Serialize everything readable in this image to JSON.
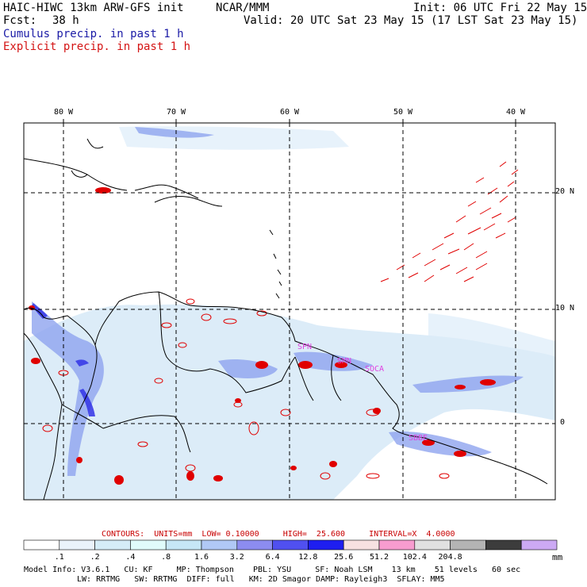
{
  "header": {
    "model": "HAIC-HIWC 13km ARW-GFS init",
    "org": "NCAR/MMM",
    "init": "Init: 06 UTC Fri 22 May 15",
    "fcst_label": "Fcst:",
    "fcst_value": "38 h",
    "valid": "Valid: 20 UTC Sat 23 May 15 (17 LST Sat 23 May 15)",
    "cumulus": "Cumulus precip. in past 1 h",
    "explicit": "Explicit precip. in past 1 h"
  },
  "map": {
    "lon_labels": [
      "80 W",
      "70 W",
      "60 W",
      "50 W",
      "40 W"
    ],
    "lat_labels": [
      "20 N",
      "10 N",
      "0"
    ],
    "stations": [
      "SPN",
      "SMN",
      "SOCA",
      "SBBE"
    ],
    "colors": {
      "coast": "#000000",
      "grid": "#000000",
      "explicit_contour": "#e00000",
      "label_magenta": "#e040e0"
    }
  },
  "contours": {
    "text": "CONTOURS:  UNITS=mm  LOW= 0.10000     HIGH=  25.600     INTERVAL=X  4.0000"
  },
  "colorbar": {
    "ticks": [
      ".1",
      ".2",
      ".4",
      ".8",
      "1.6",
      "3.2",
      "6.4",
      "12.8",
      "25.6",
      "51.2",
      "102.4",
      "204.8"
    ],
    "unit": "mm",
    "colors": [
      "#ffffff",
      "#eaf3fb",
      "#d5ecf7",
      "#e0fbfb",
      "#c6e6f6",
      "#b0c8f6",
      "#8c8cf0",
      "#5050f0",
      "#1e1ef0",
      "#f7e1e1",
      "#f79ccf",
      "#e1e1e1",
      "#b4b4b4",
      "#3c3c3c",
      "#cca9f4"
    ]
  },
  "model_info": {
    "line1": "Model Info: V3.6.1   CU: KF     MP: Thompson    PBL: YSU     SF: Noah LSM    13 km    51 levels   60 sec",
    "line2": "LW: RRTMG   SW: RRTMG  DIFF: full   KM: 2D Smagor DAMP: Rayleigh3  SFLAY: MM5"
  }
}
